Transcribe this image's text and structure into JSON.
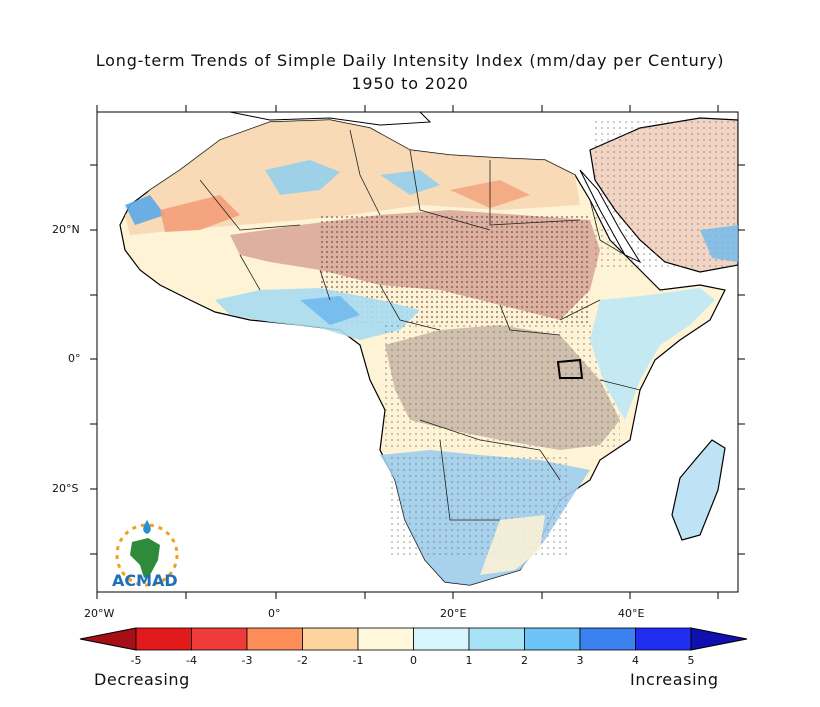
{
  "title_line1": "Long-term Trends of Simple Daily Intensity Index (mm/day per Century)",
  "title_line2": "1950 to 2020",
  "y_axis_labels": [
    "20°N",
    "0°",
    "20°S"
  ],
  "x_axis_labels": [
    "20°W",
    "0°",
    "20°E",
    "40°E"
  ],
  "colorbar": {
    "ticks": [
      "-5",
      "-4",
      "-3",
      "-2",
      "-1",
      "0",
      "1",
      "2",
      "3",
      "4",
      "5"
    ],
    "colors": [
      "#a50f15",
      "#e31a1c",
      "#f03b3b",
      "#fc8d59",
      "#fdd49e",
      "#fff7dc",
      "#d7f5fa",
      "#a6e3f7",
      "#6cc3f5",
      "#3b82f0",
      "#1f2ef0",
      "#1010b0"
    ],
    "left_word": "Decreasing",
    "right_word": "Increasing"
  },
  "logo_text": "ACMAD"
}
